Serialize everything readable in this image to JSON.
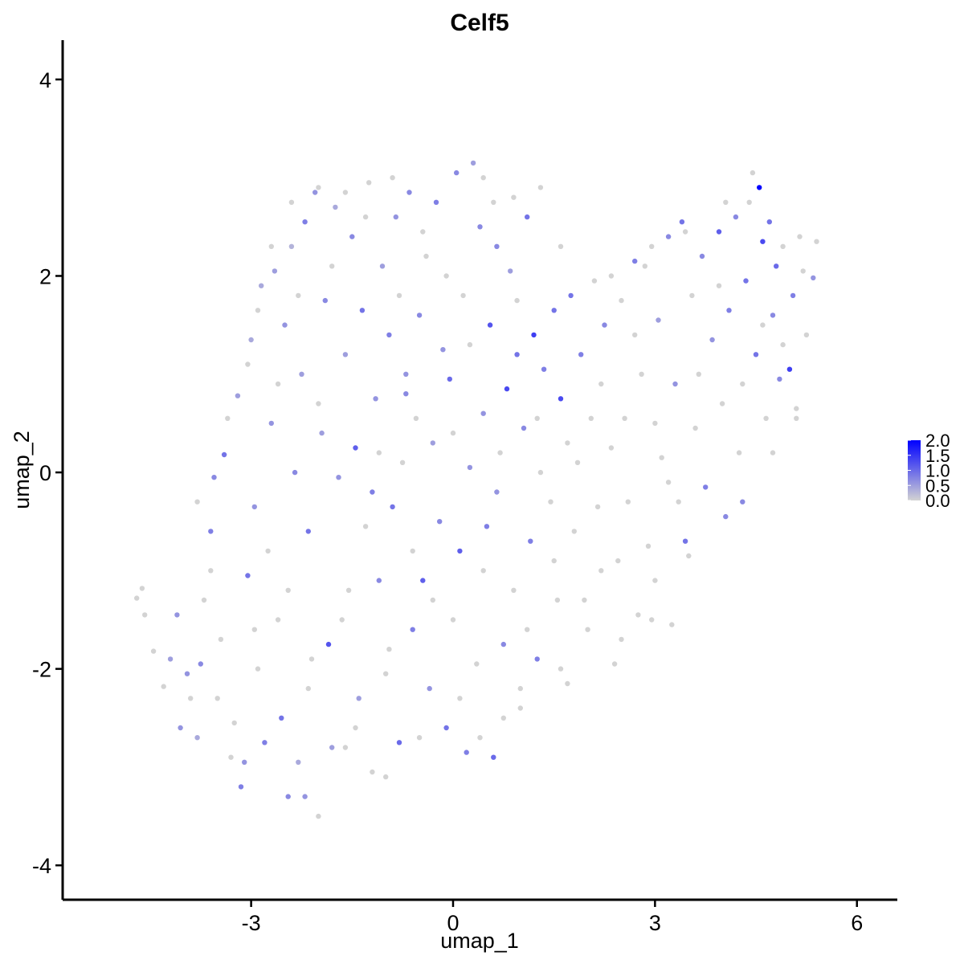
{
  "chart_data": {
    "type": "scatter",
    "title": "Celf5",
    "xlabel": "umap_1",
    "ylabel": "umap_2",
    "xlim": [
      -5.8,
      6.6
    ],
    "ylim": [
      -4.35,
      4.4
    ],
    "x_ticks": [
      -3,
      0,
      3,
      6
    ],
    "x_tick_labels": [
      "-3",
      "0",
      "3",
      "6"
    ],
    "y_ticks": [
      -4,
      -2,
      0,
      2,
      4
    ],
    "y_tick_labels": [
      "-4",
      "-2",
      "0",
      "2",
      "4"
    ],
    "grid": false,
    "legend_position": "right",
    "color_scale": {
      "low": "#d3d3d3",
      "high": "#0000ff",
      "range": [
        0,
        2.0
      ],
      "breaks": [
        2.0,
        1.5,
        1.0,
        0.5,
        0.0
      ],
      "labels": [
        "2.0",
        "1.5",
        "1.0",
        "0.5",
        "0.0"
      ]
    },
    "points": [
      {
        "x": -4.7,
        "y": -1.28,
        "v": 0
      },
      {
        "x": -4.62,
        "y": -1.18,
        "v": 0
      },
      {
        "x": -4.58,
        "y": -1.45,
        "v": 0
      },
      {
        "x": -4.45,
        "y": -1.82,
        "v": 0
      },
      {
        "x": -4.3,
        "y": -2.18,
        "v": 0
      },
      {
        "x": -4.1,
        "y": -1.45,
        "v": 0.6
      },
      {
        "x": -4.05,
        "y": -2.6,
        "v": 0.6
      },
      {
        "x": -3.8,
        "y": -2.7,
        "v": 0.4
      },
      {
        "x": -3.75,
        "y": -1.95,
        "v": 0.7
      },
      {
        "x": -3.6,
        "y": -0.6,
        "v": 0.8
      },
      {
        "x": -3.55,
        "y": -0.05,
        "v": 0.7
      },
      {
        "x": -3.5,
        "y": -2.3,
        "v": 0
      },
      {
        "x": -3.4,
        "y": 0.18,
        "v": 0.9
      },
      {
        "x": -3.3,
        "y": -2.9,
        "v": 0
      },
      {
        "x": -3.2,
        "y": 0.78,
        "v": 0.5
      },
      {
        "x": -3.15,
        "y": -3.2,
        "v": 0.8
      },
      {
        "x": -3.05,
        "y": -1.05,
        "v": 0.9
      },
      {
        "x": -3.0,
        "y": 1.35,
        "v": 0.4
      },
      {
        "x": -2.95,
        "y": -0.35,
        "v": 0.6
      },
      {
        "x": -2.9,
        "y": -2.0,
        "v": 0
      },
      {
        "x": -2.85,
        "y": 1.9,
        "v": 0.4
      },
      {
        "x": -2.8,
        "y": -2.75,
        "v": 0.8
      },
      {
        "x": -2.7,
        "y": 0.5,
        "v": 0.6
      },
      {
        "x": -2.65,
        "y": 2.05,
        "v": 0.5
      },
      {
        "x": -2.6,
        "y": -1.5,
        "v": 0
      },
      {
        "x": -2.55,
        "y": -2.5,
        "v": 0.9
      },
      {
        "x": -2.5,
        "y": 1.5,
        "v": 0.6
      },
      {
        "x": -2.45,
        "y": -3.3,
        "v": 0.7
      },
      {
        "x": -2.4,
        "y": 2.3,
        "v": 0.3
      },
      {
        "x": -2.35,
        "y": 0.0,
        "v": 0.7
      },
      {
        "x": -2.3,
        "y": -2.95,
        "v": 0.4
      },
      {
        "x": -2.25,
        "y": 1.0,
        "v": 0.5
      },
      {
        "x": -2.2,
        "y": 2.55,
        "v": 0.8
      },
      {
        "x": -2.15,
        "y": -0.6,
        "v": 0.9
      },
      {
        "x": -2.1,
        "y": -1.9,
        "v": 0
      },
      {
        "x": -2.05,
        "y": 2.85,
        "v": 0.6
      },
      {
        "x": -2.0,
        "y": -3.5,
        "v": 0
      },
      {
        "x": -1.95,
        "y": 0.4,
        "v": 0.5
      },
      {
        "x": -1.9,
        "y": 1.75,
        "v": 0.7
      },
      {
        "x": -1.85,
        "y": -1.75,
        "v": 1.2
      },
      {
        "x": -1.8,
        "y": -2.8,
        "v": 0.5
      },
      {
        "x": -1.75,
        "y": 2.7,
        "v": 0.4
      },
      {
        "x": -1.7,
        "y": -0.05,
        "v": 0.6
      },
      {
        "x": -1.6,
        "y": 1.2,
        "v": 0.5
      },
      {
        "x": -1.55,
        "y": -1.2,
        "v": 0
      },
      {
        "x": -1.5,
        "y": 2.4,
        "v": 0.7
      },
      {
        "x": -1.45,
        "y": 0.25,
        "v": 1.1
      },
      {
        "x": -1.4,
        "y": -2.3,
        "v": 0.5
      },
      {
        "x": -1.35,
        "y": 1.65,
        "v": 0.9
      },
      {
        "x": -1.3,
        "y": -0.55,
        "v": 0
      },
      {
        "x": -1.25,
        "y": 2.95,
        "v": 0
      },
      {
        "x": -1.2,
        "y": -3.05,
        "v": 0
      },
      {
        "x": -1.15,
        "y": 0.75,
        "v": 0.6
      },
      {
        "x": -1.1,
        "y": -1.1,
        "v": 0.7
      },
      {
        "x": -1.05,
        "y": 2.1,
        "v": 0.5
      },
      {
        "x": -1.0,
        "y": -2.05,
        "v": 0
      },
      {
        "x": -0.95,
        "y": 1.4,
        "v": 0.8
      },
      {
        "x": -0.9,
        "y": -0.35,
        "v": 0.9
      },
      {
        "x": -0.85,
        "y": 2.6,
        "v": 0.6
      },
      {
        "x": -0.8,
        "y": -2.75,
        "v": 1.0
      },
      {
        "x": -0.75,
        "y": 0.1,
        "v": 0
      },
      {
        "x": -0.7,
        "y": 1.0,
        "v": 0.6
      },
      {
        "x": -0.65,
        "y": 2.85,
        "v": 0.7
      },
      {
        "x": -0.6,
        "y": -1.6,
        "v": 0.8
      },
      {
        "x": -0.55,
        "y": 0.55,
        "v": 0
      },
      {
        "x": -0.5,
        "y": 1.6,
        "v": 0.7
      },
      {
        "x": -0.45,
        "y": -1.1,
        "v": 1.1
      },
      {
        "x": -0.4,
        "y": 2.2,
        "v": 0
      },
      {
        "x": -0.35,
        "y": -2.2,
        "v": 0.6
      },
      {
        "x": -0.3,
        "y": 0.3,
        "v": 0.5
      },
      {
        "x": -0.25,
        "y": 2.75,
        "v": 0.8
      },
      {
        "x": -0.2,
        "y": -0.5,
        "v": 0.7
      },
      {
        "x": -0.15,
        "y": 1.25,
        "v": 0.6
      },
      {
        "x": -0.1,
        "y": -2.6,
        "v": 0.9
      },
      {
        "x": -0.05,
        "y": 0.95,
        "v": 1.0
      },
      {
        "x": 0.0,
        "y": -1.5,
        "v": 0
      },
      {
        "x": 0.05,
        "y": 3.05,
        "v": 0.7
      },
      {
        "x": 0.1,
        "y": -0.8,
        "v": 1.1
      },
      {
        "x": 0.15,
        "y": 1.8,
        "v": 0
      },
      {
        "x": 0.2,
        "y": -2.85,
        "v": 0.8
      },
      {
        "x": 0.25,
        "y": 0.05,
        "v": 0.6
      },
      {
        "x": 0.3,
        "y": 3.15,
        "v": 0.5
      },
      {
        "x": 0.35,
        "y": -1.95,
        "v": 0
      },
      {
        "x": 0.4,
        "y": 2.5,
        "v": 0.7
      },
      {
        "x": 0.45,
        "y": 0.6,
        "v": 0.6
      },
      {
        "x": 0.5,
        "y": -0.55,
        "v": 0.8
      },
      {
        "x": 0.55,
        "y": 1.5,
        "v": 1.2
      },
      {
        "x": 0.6,
        "y": -2.9,
        "v": 1.0
      },
      {
        "x": 0.65,
        "y": 2.3,
        "v": 0.7
      },
      {
        "x": 0.7,
        "y": 0.2,
        "v": 0
      },
      {
        "x": 0.75,
        "y": -1.75,
        "v": 0.7
      },
      {
        "x": 0.8,
        "y": 0.85,
        "v": 1.3
      },
      {
        "x": 0.85,
        "y": 2.05,
        "v": 0.5
      },
      {
        "x": 0.9,
        "y": -1.2,
        "v": 0
      },
      {
        "x": 0.95,
        "y": 1.2,
        "v": 0.9
      },
      {
        "x": 1.0,
        "y": -2.4,
        "v": 0
      },
      {
        "x": 1.05,
        "y": 0.45,
        "v": 0.7
      },
      {
        "x": 1.1,
        "y": 2.6,
        "v": 0.9
      },
      {
        "x": 1.15,
        "y": -0.7,
        "v": 0.8
      },
      {
        "x": 1.2,
        "y": 1.4,
        "v": 1.4
      },
      {
        "x": 1.25,
        "y": -1.9,
        "v": 0.8
      },
      {
        "x": 1.3,
        "y": 0.0,
        "v": 0
      },
      {
        "x": 1.35,
        "y": 1.05,
        "v": 0.8
      },
      {
        "x": 1.45,
        "y": -0.3,
        "v": 0
      },
      {
        "x": 1.5,
        "y": 1.65,
        "v": 0.9
      },
      {
        "x": 1.55,
        "y": -1.3,
        "v": 0
      },
      {
        "x": 1.6,
        "y": 0.75,
        "v": 1.3
      },
      {
        "x": 1.7,
        "y": -2.15,
        "v": 0
      },
      {
        "x": 1.75,
        "y": 1.8,
        "v": 0.9
      },
      {
        "x": 1.8,
        "y": -0.6,
        "v": 0
      },
      {
        "x": 1.9,
        "y": 1.2,
        "v": 0.8
      },
      {
        "x": 2.0,
        "y": -1.6,
        "v": 0
      },
      {
        "x": 2.05,
        "y": 0.55,
        "v": 0
      },
      {
        "x": 2.1,
        "y": 1.95,
        "v": 0
      },
      {
        "x": 2.2,
        "y": -1.0,
        "v": 0
      },
      {
        "x": 2.25,
        "y": 1.5,
        "v": 0.7
      },
      {
        "x": 2.35,
        "y": 0.25,
        "v": 0
      },
      {
        "x": 2.4,
        "y": -1.95,
        "v": 0
      },
      {
        "x": 2.5,
        "y": 1.75,
        "v": 0
      },
      {
        "x": 2.6,
        "y": -0.3,
        "v": 0
      },
      {
        "x": 2.7,
        "y": 2.15,
        "v": 0.8
      },
      {
        "x": 2.75,
        "y": -1.45,
        "v": 0
      },
      {
        "x": 2.8,
        "y": 1.0,
        "v": 0
      },
      {
        "x": 2.9,
        "y": -0.75,
        "v": 0
      },
      {
        "x": 2.95,
        "y": 2.3,
        "v": 0
      },
      {
        "x": 3.0,
        "y": -1.1,
        "v": 0
      },
      {
        "x": 3.05,
        "y": 1.55,
        "v": 0.5
      },
      {
        "x": 3.1,
        "y": 0.15,
        "v": 0
      },
      {
        "x": 3.2,
        "y": 2.4,
        "v": 0.7
      },
      {
        "x": 3.25,
        "y": -1.55,
        "v": 0
      },
      {
        "x": 3.3,
        "y": 0.9,
        "v": 0.6
      },
      {
        "x": 3.4,
        "y": 2.55,
        "v": 0.9
      },
      {
        "x": 3.45,
        "y": -0.7,
        "v": 0.9
      },
      {
        "x": 3.55,
        "y": 1.8,
        "v": 0
      },
      {
        "x": 3.6,
        "y": 0.45,
        "v": 0
      },
      {
        "x": 3.7,
        "y": 2.2,
        "v": 0.7
      },
      {
        "x": 3.75,
        "y": -0.15,
        "v": 0.8
      },
      {
        "x": 3.85,
        "y": 1.35,
        "v": 0.6
      },
      {
        "x": 3.95,
        "y": 2.45,
        "v": 1.1
      },
      {
        "x": 4.0,
        "y": 0.7,
        "v": 0
      },
      {
        "x": 4.05,
        "y": -0.45,
        "v": 0.7
      },
      {
        "x": 4.1,
        "y": 1.65,
        "v": 0.8
      },
      {
        "x": 4.2,
        "y": 2.6,
        "v": 0.7
      },
      {
        "x": 4.25,
        "y": 0.2,
        "v": 0
      },
      {
        "x": 4.35,
        "y": 1.95,
        "v": 0.9
      },
      {
        "x": 4.4,
        "y": 2.75,
        "v": 0
      },
      {
        "x": 4.45,
        "y": 3.05,
        "v": 0
      },
      {
        "x": 4.5,
        "y": 1.2,
        "v": 0.9
      },
      {
        "x": 4.55,
        "y": 2.9,
        "v": 2.0
      },
      {
        "x": 4.6,
        "y": 2.35,
        "v": 1.3
      },
      {
        "x": 4.65,
        "y": 0.55,
        "v": 0
      },
      {
        "x": 4.7,
        "y": 2.55,
        "v": 0.9
      },
      {
        "x": 4.75,
        "y": 1.6,
        "v": 0.7
      },
      {
        "x": 4.8,
        "y": 2.1,
        "v": 1.0
      },
      {
        "x": 4.85,
        "y": 0.95,
        "v": 0.7
      },
      {
        "x": 4.9,
        "y": 2.3,
        "v": 0
      },
      {
        "x": 5.0,
        "y": 1.05,
        "v": 1.4
      },
      {
        "x": 5.05,
        "y": 1.8,
        "v": 0.8
      },
      {
        "x": 5.1,
        "y": 0.65,
        "v": 0
      },
      {
        "x": 5.2,
        "y": 2.05,
        "v": 0
      },
      {
        "x": 5.25,
        "y": 1.4,
        "v": 0
      },
      {
        "x": 5.35,
        "y": 1.98,
        "v": 0.6
      },
      {
        "x": -3.9,
        "y": -2.3,
        "v": 0
      },
      {
        "x": -3.7,
        "y": -1.3,
        "v": 0
      },
      {
        "x": -3.45,
        "y": -1.7,
        "v": 0
      },
      {
        "x": -3.25,
        "y": -2.55,
        "v": 0
      },
      {
        "x": -2.95,
        "y": -1.6,
        "v": 0
      },
      {
        "x": -2.75,
        "y": -0.8,
        "v": 0
      },
      {
        "x": -2.6,
        "y": 0.9,
        "v": 0
      },
      {
        "x": -2.45,
        "y": -1.2,
        "v": 0
      },
      {
        "x": -2.3,
        "y": 1.8,
        "v": 0
      },
      {
        "x": -2.15,
        "y": -2.2,
        "v": 0
      },
      {
        "x": -2.0,
        "y": 0.7,
        "v": 0
      },
      {
        "x": -1.8,
        "y": 2.1,
        "v": 0
      },
      {
        "x": -1.65,
        "y": -1.5,
        "v": 0
      },
      {
        "x": -1.45,
        "y": -2.6,
        "v": 0
      },
      {
        "x": -1.3,
        "y": 2.6,
        "v": 0
      },
      {
        "x": -1.1,
        "y": 0.2,
        "v": 0
      },
      {
        "x": -0.95,
        "y": -1.8,
        "v": 0
      },
      {
        "x": -0.8,
        "y": 1.8,
        "v": 0
      },
      {
        "x": -0.6,
        "y": -0.8,
        "v": 0
      },
      {
        "x": -0.45,
        "y": 2.45,
        "v": 0
      },
      {
        "x": -0.3,
        "y": -1.3,
        "v": 0
      },
      {
        "x": -0.1,
        "y": 2.0,
        "v": 0
      },
      {
        "x": 0.1,
        "y": -2.3,
        "v": 0
      },
      {
        "x": 0.25,
        "y": 1.3,
        "v": 0
      },
      {
        "x": 0.45,
        "y": -1.0,
        "v": 0
      },
      {
        "x": 0.6,
        "y": 2.75,
        "v": 0
      },
      {
        "x": 0.75,
        "y": -2.5,
        "v": 0
      },
      {
        "x": 0.95,
        "y": 1.75,
        "v": 0
      },
      {
        "x": 1.1,
        "y": -1.6,
        "v": 0
      },
      {
        "x": 1.3,
        "y": 2.9,
        "v": 0
      },
      {
        "x": 1.5,
        "y": -0.9,
        "v": 0
      },
      {
        "x": 1.7,
        "y": 0.3,
        "v": 0
      },
      {
        "x": 1.95,
        "y": -1.3,
        "v": 0
      },
      {
        "x": 2.2,
        "y": 0.9,
        "v": 0
      },
      {
        "x": 2.45,
        "y": -0.9,
        "v": 0
      },
      {
        "x": 2.7,
        "y": 1.4,
        "v": 0
      },
      {
        "x": 3.0,
        "y": 0.5,
        "v": 0
      },
      {
        "x": 3.35,
        "y": -0.3,
        "v": 0
      },
      {
        "x": 3.65,
        "y": 1.0,
        "v": 0
      },
      {
        "x": 3.95,
        "y": 1.9,
        "v": 0
      },
      {
        "x": 4.3,
        "y": 0.9,
        "v": 0
      },
      {
        "x": 4.6,
        "y": 1.5,
        "v": 0
      },
      {
        "x": 4.9,
        "y": 1.3,
        "v": 0
      },
      {
        "x": 5.15,
        "y": 2.4,
        "v": 0
      },
      {
        "x": -4.2,
        "y": -1.9,
        "v": 0.5
      },
      {
        "x": -3.95,
        "y": -2.05,
        "v": 0.6
      },
      {
        "x": -3.1,
        "y": -2.95,
        "v": 0.6
      },
      {
        "x": -2.2,
        "y": -3.3,
        "v": 0.6
      },
      {
        "x": -1.6,
        "y": -2.8,
        "v": 0
      },
      {
        "x": -1.0,
        "y": -3.1,
        "v": 0
      },
      {
        "x": -0.5,
        "y": -2.7,
        "v": 0
      },
      {
        "x": 0.4,
        "y": -2.7,
        "v": 0
      },
      {
        "x": 1.0,
        "y": -2.2,
        "v": 0
      },
      {
        "x": 1.6,
        "y": -2.0,
        "v": 0
      },
      {
        "x": 2.5,
        "y": -1.7,
        "v": 0
      },
      {
        "x": 2.95,
        "y": -1.5,
        "v": 0
      },
      {
        "x": 3.5,
        "y": -0.85,
        "v": 0
      },
      {
        "x": 4.3,
        "y": -0.3,
        "v": 0.7
      },
      {
        "x": 4.75,
        "y": 0.2,
        "v": 0
      },
      {
        "x": 5.1,
        "y": 0.55,
        "v": 0
      },
      {
        "x": -3.35,
        "y": 0.55,
        "v": 0
      },
      {
        "x": -3.05,
        "y": 1.1,
        "v": 0
      },
      {
        "x": -2.9,
        "y": 1.65,
        "v": 0
      },
      {
        "x": -2.7,
        "y": 2.3,
        "v": 0
      },
      {
        "x": -2.4,
        "y": 2.75,
        "v": 0
      },
      {
        "x": -2.0,
        "y": 2.9,
        "v": 0
      },
      {
        "x": -1.6,
        "y": 2.85,
        "v": 0
      },
      {
        "x": -0.9,
        "y": 3.0,
        "v": 0
      },
      {
        "x": 0.45,
        "y": 3.0,
        "v": 0
      },
      {
        "x": 0.9,
        "y": 2.8,
        "v": 0
      },
      {
        "x": 1.6,
        "y": 2.3,
        "v": 0
      },
      {
        "x": 2.35,
        "y": 2.0,
        "v": 0
      },
      {
        "x": 2.85,
        "y": 2.1,
        "v": 0
      },
      {
        "x": 3.45,
        "y": 2.45,
        "v": 0
      },
      {
        "x": 4.05,
        "y": 2.75,
        "v": 0
      },
      {
        "x": 5.4,
        "y": 2.35,
        "v": 0
      },
      {
        "x": -3.8,
        "y": -0.3,
        "v": 0
      },
      {
        "x": -3.6,
        "y": -1.0,
        "v": 0
      },
      {
        "x": -1.2,
        "y": -0.2,
        "v": 0.8
      },
      {
        "x": -0.7,
        "y": 0.8,
        "v": 0.7
      },
      {
        "x": 0.0,
        "y": 0.4,
        "v": 0
      },
      {
        "x": 0.65,
        "y": -0.2,
        "v": 0.6
      },
      {
        "x": 1.25,
        "y": 0.55,
        "v": 0
      },
      {
        "x": 1.85,
        "y": 0.1,
        "v": 0
      },
      {
        "x": 2.15,
        "y": -0.35,
        "v": 0
      },
      {
        "x": 2.55,
        "y": 0.55,
        "v": 0
      },
      {
        "x": 3.2,
        "y": -0.1,
        "v": 0
      }
    ]
  }
}
